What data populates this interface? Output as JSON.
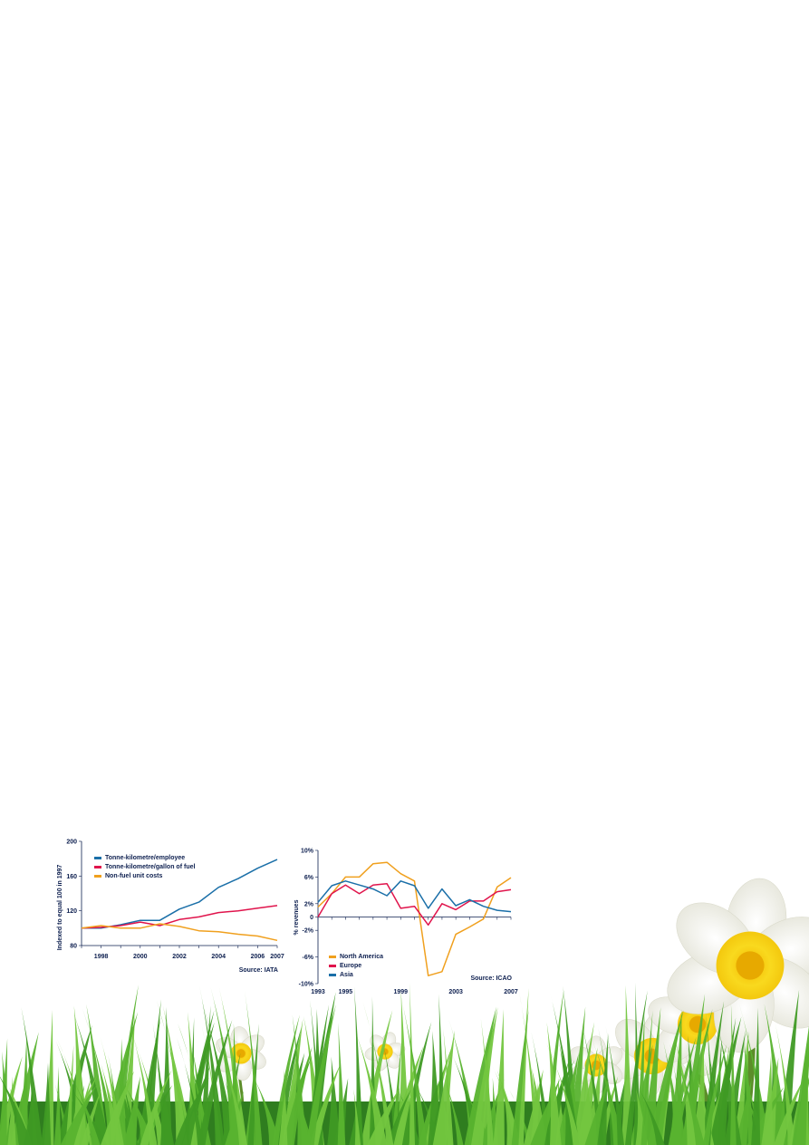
{
  "chart_data": [
    {
      "type": "line",
      "title": "",
      "xlabel": "",
      "ylabel": "Indexed to equal 100 in 1997",
      "source": "Source: IATA",
      "ylim": [
        80,
        200
      ],
      "xlim": [
        1997,
        2007
      ],
      "xticks": [
        1998,
        2000,
        2002,
        2004,
        2006,
        2007
      ],
      "xtick_labels": [
        "1998",
        "2000",
        "2002",
        "2004",
        "2006",
        "2007"
      ],
      "yticks": [
        80,
        120,
        160,
        200
      ],
      "ytick_labels": [
        "80",
        "120",
        "160",
        "200"
      ],
      "grid": false,
      "legend_position": "top-left",
      "x": [
        1997,
        1998,
        1999,
        2000,
        2001,
        2002,
        2003,
        2004,
        2005,
        2006,
        2007
      ],
      "series": [
        {
          "name": "Tonne-kilometre/employee",
          "color": "#1a6fa8",
          "values": [
            100,
            100,
            104,
            109,
            109,
            122,
            130,
            147,
            157,
            169,
            179
          ]
        },
        {
          "name": "Tonne-kilometre/gallon of fuel",
          "color": "#e0144c",
          "values": [
            100,
            101,
            103,
            107,
            103,
            110,
            113,
            118,
            120,
            123,
            126
          ]
        },
        {
          "name": "Non-fuel unit costs",
          "color": "#f0a01e",
          "values": [
            100,
            103,
            100,
            100,
            105,
            102,
            97,
            96,
            93,
            91,
            86
          ]
        }
      ]
    },
    {
      "type": "line",
      "title": "",
      "xlabel": "",
      "ylabel": "% revenues",
      "source": "Source: ICAO",
      "ylim": [
        -10,
        10
      ],
      "xlim": [
        1993,
        2007
      ],
      "xticks": [
        1993,
        1995,
        1999,
        2003,
        2007
      ],
      "xtick_labels": [
        "1993",
        "1995",
        "1999",
        "2003",
        "2007"
      ],
      "yticks": [
        10,
        6,
        2,
        0,
        -2,
        -6,
        -10
      ],
      "ytick_labels": [
        "10%",
        "6%",
        "2%",
        "0",
        "-2%",
        "-6%",
        "-10%"
      ],
      "grid": false,
      "legend_position": "bottom-left",
      "x": [
        1993,
        1994,
        1995,
        1996,
        1997,
        1998,
        1999,
        2000,
        2001,
        2002,
        2003,
        2004,
        2005,
        2006,
        2007
      ],
      "series": [
        {
          "name": "North America",
          "color": "#f0a01e",
          "values": [
            1.5,
            3.5,
            6,
            6,
            8,
            8.2,
            6.5,
            5.4,
            -8.8,
            -8.2,
            -2.6,
            -1.5,
            -0.3,
            4.5,
            5.9
          ]
        },
        {
          "name": "Europe",
          "color": "#e0144c",
          "values": [
            0,
            3.5,
            4.8,
            3.5,
            4.8,
            5,
            1.3,
            1.6,
            -1.2,
            2,
            1.1,
            2.4,
            2.4,
            3.8,
            4.1
          ]
        },
        {
          "name": "Asia",
          "color": "#1a6fa8",
          "values": [
            2.2,
            4.7,
            5.4,
            4.8,
            4.2,
            3.2,
            5.4,
            4.7,
            1.3,
            4.2,
            1.7,
            2.6,
            1.6,
            1,
            0.8
          ]
        }
      ]
    }
  ],
  "colors": {
    "text": "#0d1f4f",
    "axis": "#0d1f4f",
    "grass": "#4caa2a",
    "grass_dark": "#2f7d1f",
    "daffodil_yellow": "#f7d21c",
    "petal_white": "#f6f6ee"
  },
  "decorations": [
    "grass-border",
    "daffodil-flowers"
  ]
}
